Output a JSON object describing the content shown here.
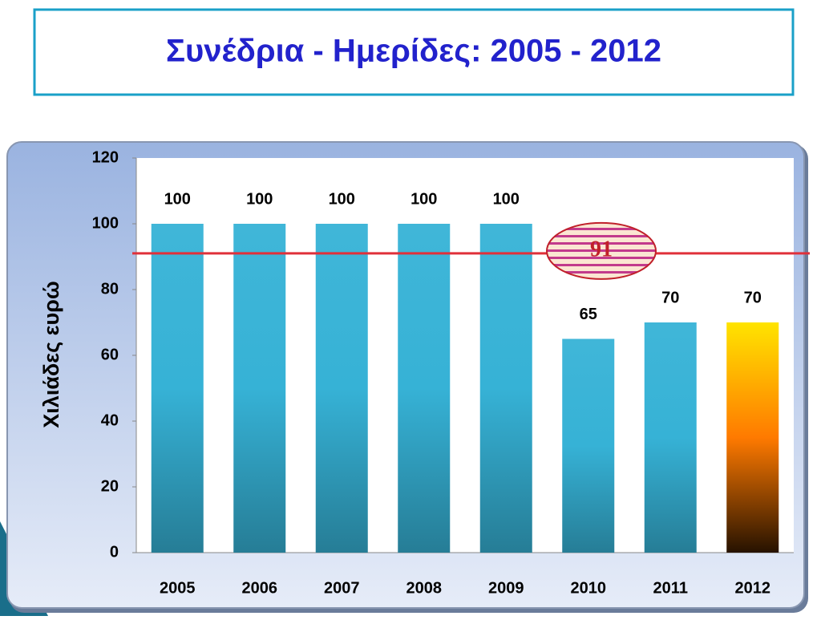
{
  "chart_data": {
    "type": "bar",
    "title": "Συνέδρια - Ημερίδες:   2005 - 2012",
    "y_label": "Χιλιάδες  ευρώ",
    "categories": [
      "2005",
      "2006",
      "2007",
      "2008",
      "2009",
      "2010",
      "2011",
      "2012"
    ],
    "values": [
      100,
      100,
      100,
      100,
      100,
      65,
      70,
      70
    ],
    "colors": [
      "#36b2d6",
      "#36b2d6",
      "#36b2d6",
      "#36b2d6",
      "#36b2d6",
      "#36b2d6",
      "#36b2d6",
      "#ff7a00"
    ],
    "ylim": [
      0,
      120
    ],
    "yticks": [
      0,
      20,
      40,
      60,
      80,
      100,
      120
    ],
    "reference_line": {
      "value": 91,
      "color": "#e0303a"
    }
  }
}
